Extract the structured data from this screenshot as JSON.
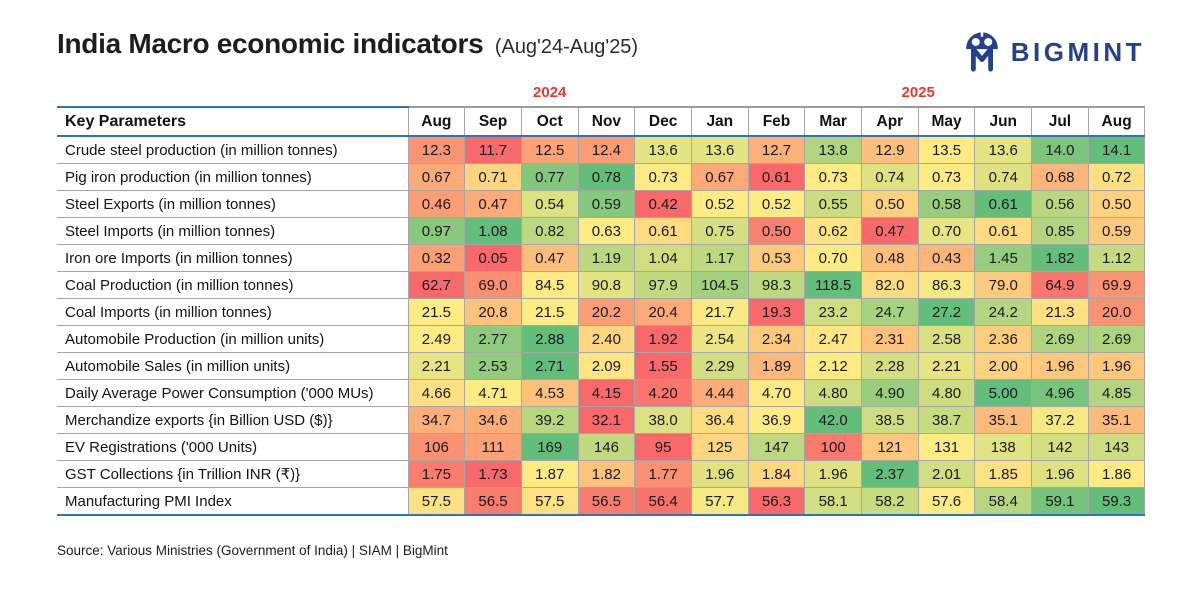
{
  "header": {
    "title": "India Macro economic indicators",
    "subtitle": "(Aug'24-Aug'25)",
    "logo_text": "BIGMINT"
  },
  "colors": {
    "accent_blue": "#2e75b6",
    "year_red": "#e8392f",
    "logo_navy": "#24418e",
    "grid_gray": "#a6a6a6",
    "heatmap_min": "#F8696B",
    "heatmap_mid": "#FFEB84",
    "heatmap_max": "#63BE7B"
  },
  "chart_data": {
    "type": "heatmap",
    "title": "India Macro economic indicators (Aug'24-Aug'25)",
    "key_column_header": "Key Parameters",
    "year_groups": [
      {
        "label": "2024",
        "span": 5
      },
      {
        "label": "2025",
        "span": 8
      }
    ],
    "columns": [
      "Aug",
      "Sep",
      "Oct",
      "Nov",
      "Dec",
      "Jan",
      "Feb",
      "Mar",
      "Apr",
      "May",
      "Jun",
      "Jul",
      "Aug"
    ],
    "color_scale": {
      "min_color": "#F8696B",
      "mid_color": "#FFEB84",
      "max_color": "#63BE7B",
      "midpoint": "row median"
    },
    "rows": [
      {
        "label": "Crude steel production (in million tonnes)",
        "values": [
          "12.3",
          "11.7",
          "12.5",
          "12.4",
          "13.6",
          "13.6",
          "12.7",
          "13.8",
          "12.9",
          "13.5",
          "13.6",
          "14.0",
          "14.1"
        ]
      },
      {
        "label": "Pig iron production (in million tonnes)",
        "values": [
          "0.67",
          "0.71",
          "0.77",
          "0.78",
          "0.73",
          "0.67",
          "0.61",
          "0.73",
          "0.74",
          "0.73",
          "0.74",
          "0.68",
          "0.72"
        ]
      },
      {
        "label": "Steel Exports (in million tonnes)",
        "values": [
          "0.46",
          "0.47",
          "0.54",
          "0.59",
          "0.42",
          "0.52",
          "0.52",
          "0.55",
          "0.50",
          "0.58",
          "0.61",
          "0.56",
          "0.50"
        ]
      },
      {
        "label": "Steel Imports (in million tonnes)",
        "values": [
          "0.97",
          "1.08",
          "0.82",
          "0.63",
          "0.61",
          "0.75",
          "0.50",
          "0.62",
          "0.47",
          "0.70",
          "0.61",
          "0.85",
          "0.59"
        ]
      },
      {
        "label": "Iron ore Imports (in million tonnes)",
        "values": [
          "0.32",
          "0.05",
          "0.47",
          "1.19",
          "1.04",
          "1.17",
          "0.53",
          "0.70",
          "0.48",
          "0.43",
          "1.45",
          "1.82",
          "1.12"
        ]
      },
      {
        "label": "Coal Production (in million tonnes)",
        "values": [
          "62.7",
          "69.0",
          "84.5",
          "90.8",
          "97.9",
          "104.5",
          "98.3",
          "118.5",
          "82.0",
          "86.3",
          "79.0",
          "64.9",
          "69.9"
        ]
      },
      {
        "label": "Coal Imports (in million tonnes)",
        "values": [
          "21.5",
          "20.8",
          "21.5",
          "20.2",
          "20.4",
          "21.7",
          "19.3",
          "23.2",
          "24.7",
          "27.2",
          "24.2",
          "21.3",
          "20.0"
        ]
      },
      {
        "label": "Automobile Production (in million units)",
        "values": [
          "2.49",
          "2.77",
          "2.88",
          "2.40",
          "1.92",
          "2.54",
          "2.34",
          "2.47",
          "2.31",
          "2.58",
          "2.36",
          "2.69",
          "2.69"
        ]
      },
      {
        "label": "Automobile Sales (in million units)",
        "values": [
          "2.21",
          "2.53",
          "2.71",
          "2.09",
          "1.55",
          "2.29",
          "1.89",
          "2.12",
          "2.28",
          "2.21",
          "2.00",
          "1.96",
          "1.96"
        ]
      },
      {
        "label": "Daily Average Power Consumption ('000 MUs)",
        "values": [
          "4.66",
          "4.71",
          "4.53",
          "4.15",
          "4.20",
          "4.44",
          "4.70",
          "4.80",
          "4.90",
          "4.80",
          "5.00",
          "4.96",
          "4.85"
        ]
      },
      {
        "label": "Merchandize exports {in Billion USD ($)}",
        "values": [
          "34.7",
          "34.6",
          "39.2",
          "32.1",
          "38.0",
          "36.4",
          "36.9",
          "42.0",
          "38.5",
          "38.7",
          "35.1",
          "37.2",
          "35.1"
        ]
      },
      {
        "label": "EV Registrations ('000 Units)",
        "values": [
          "106",
          "111",
          "169",
          "146",
          "95",
          "125",
          "147",
          "100",
          "121",
          "131",
          "138",
          "142",
          "143"
        ]
      },
      {
        "label": "GST Collections {in Trillion INR (₹)}",
        "values": [
          "1.75",
          "1.73",
          "1.87",
          "1.82",
          "1.77",
          "1.96",
          "1.84",
          "1.96",
          "2.37",
          "2.01",
          "1.85",
          "1.96",
          "1.86"
        ]
      },
      {
        "label": "Manufacturing PMI Index",
        "values": [
          "57.5",
          "56.5",
          "57.5",
          "56.5",
          "56.4",
          "57.7",
          "56.3",
          "58.1",
          "58.2",
          "57.6",
          "58.4",
          "59.1",
          "59.3"
        ]
      }
    ]
  },
  "footer": {
    "source": "Source: Various Ministries (Government of India)  |  SIAM  |  BigMint"
  }
}
